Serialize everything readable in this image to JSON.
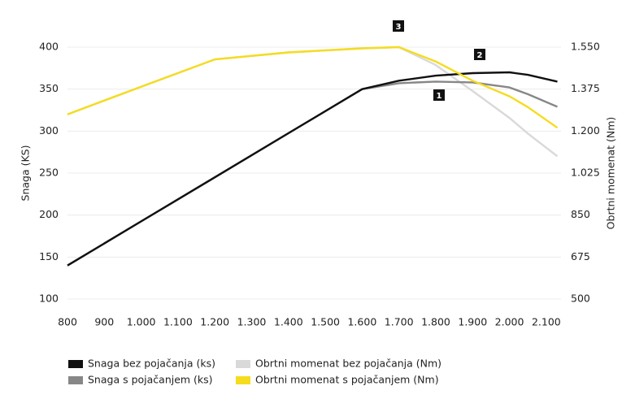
{
  "chart_data": {
    "type": "line",
    "y_label": "Snaga (KS)",
    "y2_label": "Obrtni momenat (Nm)",
    "x": [
      800,
      1000,
      1200,
      1400,
      1600,
      1700,
      1800,
      1900,
      2000,
      2050,
      2130
    ],
    "xlim": [
      800,
      2140
    ],
    "xticks": [
      800,
      900,
      {
        "value": 1000,
        "label": "1.000"
      },
      {
        "value": 1100,
        "label": "1.100"
      },
      {
        "value": 1200,
        "label": "1.200"
      },
      {
        "value": 1300,
        "label": "1.300"
      },
      {
        "value": 1400,
        "label": "1.400"
      },
      {
        "value": 1500,
        "label": "1.500"
      },
      {
        "value": 1600,
        "label": "1.600"
      },
      {
        "value": 1700,
        "label": "1.700"
      },
      {
        "value": 1800,
        "label": "1.800"
      },
      {
        "value": 1900,
        "label": "1.900"
      },
      {
        "value": 2000,
        "label": "2.000"
      },
      {
        "value": 2100,
        "label": "2.100"
      }
    ],
    "ylim": [
      100,
      400
    ],
    "yticks": [
      100,
      150,
      200,
      250,
      300,
      350,
      400
    ],
    "y2lim": [
      500,
      1550
    ],
    "y2ticks": [
      500,
      675,
      850,
      {
        "value": 1025,
        "label": "1.025"
      },
      {
        "value": 1200,
        "label": "1.200"
      },
      {
        "value": 1375,
        "label": "1.375"
      },
      {
        "value": 1550,
        "label": "1.550"
      }
    ],
    "series": [
      {
        "name": "Obrtni momenat bez pojačanja (Nm)",
        "color": "#d9d9d9",
        "axis": "y2",
        "values": [
          1270,
          1385,
          1499,
          1528,
          1545,
          1550,
          1475,
          1367,
          1255,
          1190,
          1095
        ]
      },
      {
        "name": "Snaga s pojačanjem (ks)",
        "color": "#878787",
        "values": [
          140,
          192.5,
          245,
          297.5,
          350,
          357,
          359,
          358,
          352,
          344,
          329
        ]
      },
      {
        "name": "Snaga bez pojačanja (ks)",
        "color": "#111111",
        "values": [
          140,
          192.5,
          245,
          297.5,
          350,
          360,
          366,
          369,
          370,
          367,
          359
        ]
      },
      {
        "name": "Obrtni momenat s pojačanjem (Nm)",
        "color": "#f5dc1e",
        "axis": "y2",
        "values": [
          1270,
          1385,
          1499,
          1528,
          1545,
          1550,
          1490,
          1410,
          1345,
          1300,
          1214
        ]
      }
    ],
    "annotations": [
      "1",
      "2",
      "3"
    ]
  }
}
